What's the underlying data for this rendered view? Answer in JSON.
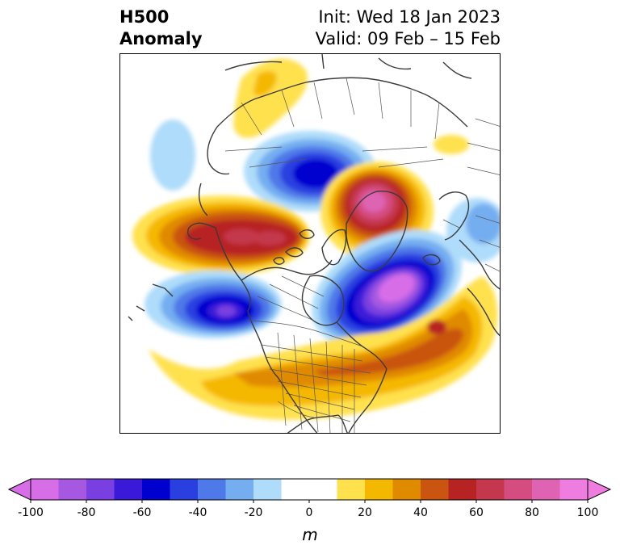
{
  "header": {
    "title_line1": "H500",
    "title_line2": "Anomaly",
    "init": "Init: Wed 18 Jan 2023",
    "valid": "Valid: 09 Feb – 15 Feb"
  },
  "colorbar": {
    "min": -100,
    "max": 100,
    "step": 10,
    "extend": "both",
    "colors": [
      "#d86de8",
      "#a658e0",
      "#7a3fe0",
      "#3a1ad8",
      "#0000cf",
      "#2a3fe0",
      "#4f78e8",
      "#75aef0",
      "#aedcfa",
      "#ffffff",
      "#ffffff",
      "#ffe14d",
      "#f5b800",
      "#e08a00",
      "#c95510",
      "#b72323",
      "#c4374c",
      "#d44c80",
      "#de63b3",
      "#ee7ddf"
    ],
    "ticks": [
      "-100",
      "-80",
      "-60",
      "-40",
      "-20",
      "0",
      "20",
      "40",
      "60",
      "80",
      "100"
    ],
    "units": "m"
  },
  "map": {
    "projection": "north-polar-stereographic",
    "region": "North America / North Atlantic / Arctic",
    "anomaly_features": [
      {
        "region": "Alaska / NE Pacific",
        "sign": "positive",
        "peak": 70
      },
      {
        "region": "Hudson Bay / NE Canada",
        "sign": "negative",
        "peak": -60
      },
      {
        "region": "Greenland / Arctic",
        "sign": "positive",
        "peak": 90
      },
      {
        "region": "Gulf of Alaska / NE Pacific",
        "sign": "negative",
        "peak": -90
      },
      {
        "region": "North Atlantic / Europe",
        "sign": "negative",
        "peak": -100
      },
      {
        "region": "Eastern US / Western Atlantic",
        "sign": "positive",
        "peak": 60
      }
    ]
  }
}
